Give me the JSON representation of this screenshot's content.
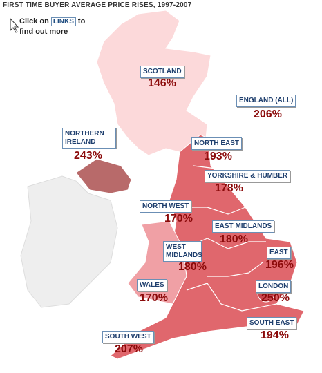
{
  "title": "FIRST TIME BUYER AVERAGE PRICE RISES, 1997-2007",
  "instruction": {
    "before": "Click on",
    "link": "LINKS",
    "after": "to find out more"
  },
  "regions": [
    {
      "label": "SCOTLAND",
      "value": "146%"
    },
    {
      "label": "ENGLAND (ALL)",
      "value": "206%"
    },
    {
      "label": "NORTHERN IRELAND",
      "value": "243%"
    },
    {
      "label": "NORTH EAST",
      "value": "193%"
    },
    {
      "label": "YORKSHIRE & HUMBER",
      "value": "178%"
    },
    {
      "label": "NORTH WEST",
      "value": "170%"
    },
    {
      "label": "EAST MIDLANDS",
      "value": "180%"
    },
    {
      "label": "WEST MIDLANDS",
      "value": "180%"
    },
    {
      "label": "EAST",
      "value": "196%"
    },
    {
      "label": "WALES",
      "value": "170%"
    },
    {
      "label": "LONDON",
      "value": "250%"
    },
    {
      "label": "SOUTH EAST",
      "value": "194%"
    },
    {
      "label": "SOUTH WEST",
      "value": "207%"
    }
  ]
}
